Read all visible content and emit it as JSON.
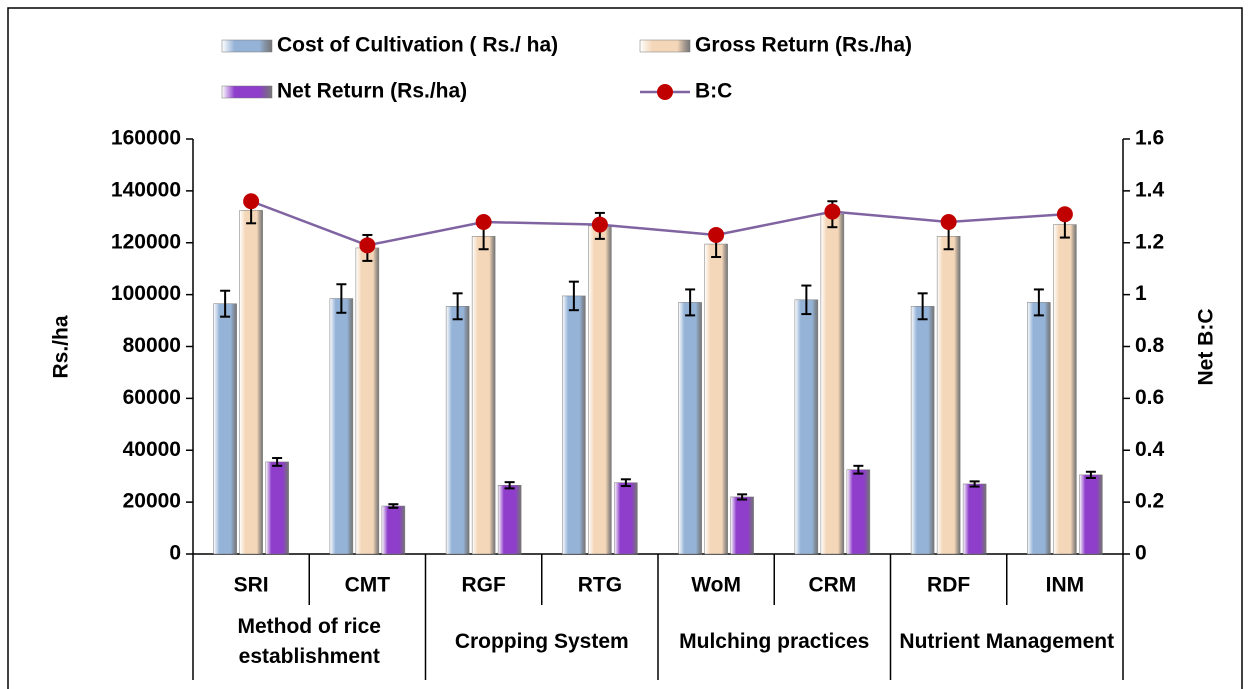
{
  "chart_data": {
    "type": "bar",
    "categories": [
      "SRI",
      "CMT",
      "RGF",
      "RTG",
      "WoM",
      "CRM",
      "RDF",
      "INM"
    ],
    "groups": [
      "Method of rice establishment",
      "Cropping System",
      "Mulching practices",
      "Nutrient Management"
    ],
    "ylabel": "Rs./ha",
    "y2label": "Net B:C",
    "ylim": [
      0,
      160000
    ],
    "yticks": [
      0,
      20000,
      40000,
      60000,
      80000,
      100000,
      120000,
      140000,
      160000
    ],
    "y2lim": [
      0,
      1.6
    ],
    "y2ticks": [
      0,
      0.2,
      0.4,
      0.6,
      0.8,
      1,
      1.2,
      1.4,
      1.6
    ],
    "series": [
      {
        "name": "Cost of Cultivation ( Rs./ ha)",
        "color": "#95b3d7",
        "values": [
          96500,
          98500,
          95500,
          99500,
          97000,
          98000,
          95500,
          97000
        ],
        "errors": [
          5000,
          5500,
          5000,
          5500,
          5000,
          5500,
          5000,
          5000
        ]
      },
      {
        "name": "Gross Return (Rs./ha)",
        "color": "#f4d6b8",
        "values": [
          132500,
          118000,
          122500,
          126500,
          119500,
          131000,
          122500,
          127000
        ],
        "errors": [
          5000,
          5000,
          5000,
          5000,
          5000,
          5000,
          5000,
          5000
        ]
      },
      {
        "name": "Net Return (Rs./ha)",
        "color": "#8e3ecb",
        "values": [
          35500,
          18500,
          26500,
          27500,
          22000,
          32500,
          27000,
          30500
        ],
        "errors": [
          1500,
          700,
          1200,
          1300,
          1000,
          1500,
          1000,
          1200
        ]
      },
      {
        "name": "B:C",
        "type": "line",
        "axis": "y2",
        "color": "#8064a2",
        "marker_color": "#c00000",
        "values": [
          1.36,
          1.19,
          1.28,
          1.27,
          1.23,
          1.32,
          1.28,
          1.31
        ]
      }
    ]
  }
}
